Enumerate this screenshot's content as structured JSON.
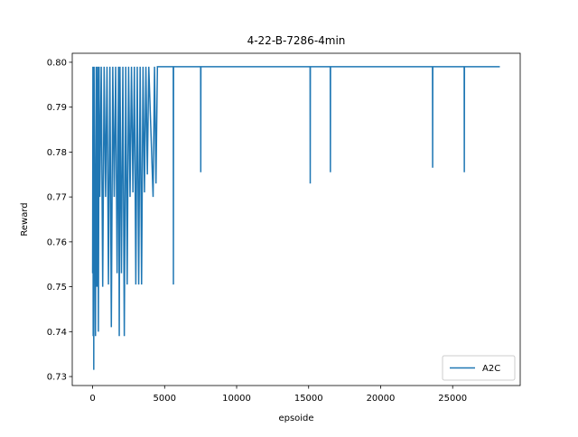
{
  "chart_data": {
    "type": "line",
    "title": "4-22-B-7286-4min",
    "x_label": "epsoide",
    "y_label": "Reward",
    "x": [
      0,
      20,
      40,
      60,
      80,
      100,
      150,
      200,
      250,
      300,
      350,
      400,
      450,
      500,
      600,
      700,
      800,
      900,
      1000,
      1100,
      1200,
      1300,
      1400,
      1500,
      1600,
      1700,
      1800,
      1850,
      1900,
      2000,
      2100,
      2200,
      2300,
      2400,
      2500,
      2600,
      2700,
      2800,
      2900,
      3000,
      3100,
      3200,
      3300,
      3400,
      3500,
      3600,
      3700,
      3800,
      3900,
      4200,
      4300,
      4400,
      4500,
      5600,
      5610,
      5620,
      7500,
      7510,
      7520,
      15100,
      15110,
      15120,
      16500,
      16510,
      16520,
      23600,
      23610,
      23620,
      25800,
      25810,
      25820,
      28276
    ],
    "series": [
      {
        "name": "A2C",
        "color": "#1f77b4",
        "values": [
          0.753,
          0.799,
          0.739,
          0.799,
          0.7315,
          0.799,
          0.77,
          0.739,
          0.799,
          0.75,
          0.799,
          0.74,
          0.799,
          0.77,
          0.799,
          0.75,
          0.799,
          0.77,
          0.799,
          0.7505,
          0.799,
          0.741,
          0.799,
          0.77,
          0.799,
          0.753,
          0.799,
          0.739,
          0.799,
          0.753,
          0.799,
          0.739,
          0.799,
          0.7505,
          0.799,
          0.77,
          0.799,
          0.771,
          0.799,
          0.7505,
          0.799,
          0.7505,
          0.799,
          0.7505,
          0.799,
          0.771,
          0.799,
          0.775,
          0.799,
          0.77,
          0.799,
          0.773,
          0.799,
          0.799,
          0.7505,
          0.799,
          0.799,
          0.7755,
          0.799,
          0.799,
          0.773,
          0.799,
          0.799,
          0.7755,
          0.799,
          0.799,
          0.7765,
          0.799,
          0.799,
          0.7755,
          0.799,
          0.799
        ]
      }
    ],
    "xlim": [
      -1414,
      29690
    ],
    "ylim": [
      0.728,
      0.802
    ],
    "xticks": [
      0,
      5000,
      10000,
      15000,
      20000,
      25000
    ],
    "yticks": [
      0.73,
      0.74,
      0.75,
      0.76,
      0.77,
      0.78,
      0.79,
      {
        "value": 0.8,
        "label": "0.80"
      }
    ],
    "legend": "lower right"
  }
}
